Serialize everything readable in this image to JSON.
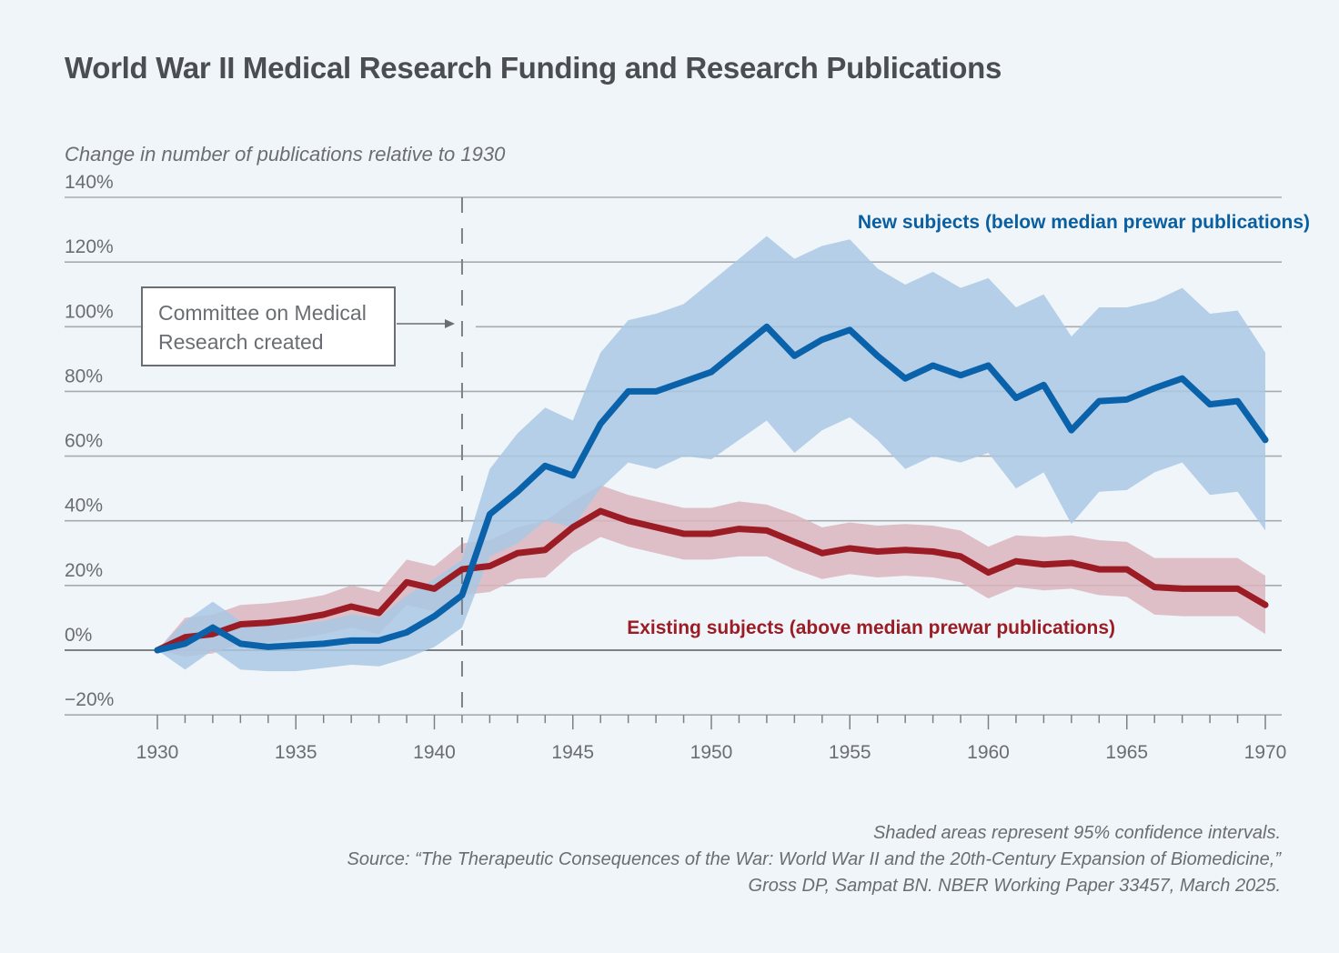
{
  "chart_data": {
    "type": "line",
    "title": "World War II Medical Research Funding and Research Publications",
    "ylabel": "Change in number of publications relative to 1930",
    "xlabel": "",
    "ylim": [
      -20,
      140
    ],
    "xlim": [
      1930,
      1970
    ],
    "grid": true,
    "y_ticks": [
      -20,
      0,
      20,
      40,
      60,
      80,
      100,
      120,
      140
    ],
    "y_tick_labels": [
      "−20%",
      "0%",
      "20%",
      "40%",
      "60%",
      "80%",
      "100%",
      "120%",
      "140%"
    ],
    "x_ticks": [
      1930,
      1935,
      1940,
      1945,
      1950,
      1955,
      1960,
      1965,
      1970
    ],
    "x_tick_labels": [
      "1930",
      "1935",
      "1940",
      "1945",
      "1950",
      "1955",
      "1960",
      "1965",
      "1970"
    ],
    "x": [
      1930,
      1931,
      1932,
      1933,
      1934,
      1935,
      1936,
      1937,
      1938,
      1939,
      1940,
      1941,
      1942,
      1943,
      1944,
      1945,
      1946,
      1947,
      1948,
      1949,
      1950,
      1951,
      1952,
      1953,
      1954,
      1955,
      1956,
      1957,
      1958,
      1959,
      1960,
      1961,
      1962,
      1963,
      1964,
      1965,
      1966,
      1967,
      1968,
      1969,
      1970
    ],
    "series": [
      {
        "name": "New subjects (below median prewar publications)",
        "color": "#0a62aa",
        "band_color": "#a9c8e3",
        "values": [
          0,
          2,
          7,
          2,
          1,
          1.5,
          2,
          3,
          3,
          5.5,
          10.5,
          17,
          42,
          49,
          57,
          54,
          70,
          80,
          80,
          83,
          86,
          93,
          100,
          91,
          96,
          99,
          91,
          84,
          88,
          85,
          88,
          78,
          82,
          68,
          77,
          77.5,
          81,
          84,
          76,
          77,
          65
        ],
        "ci_upper": [
          0,
          9,
          15,
          9,
          8,
          8,
          9,
          11,
          10,
          17,
          22,
          28,
          56,
          67,
          75,
          71,
          92,
          102,
          104,
          107,
          114,
          121,
          128,
          121,
          125,
          127,
          118,
          113,
          117,
          112,
          115,
          106,
          110,
          97,
          106,
          106,
          108,
          112,
          104,
          105,
          92
        ],
        "ci_lower": [
          0,
          -6,
          0,
          -6,
          -6.5,
          -6.5,
          -5.5,
          -4.5,
          -5,
          -2.5,
          1,
          7,
          29,
          33,
          40,
          38,
          50,
          58,
          56,
          60,
          59,
          65,
          71,
          61,
          68,
          72,
          65,
          56,
          60,
          58,
          61,
          50,
          55,
          39,
          49,
          49.5,
          55,
          58,
          48,
          49,
          37
        ]
      },
      {
        "name": "Existing subjects (above median prewar publications)",
        "color": "#9b1c24",
        "band_color": "#dcb5bd",
        "values": [
          0,
          4,
          5,
          8,
          8.5,
          9.5,
          11,
          13.5,
          11.5,
          21,
          19,
          25,
          26,
          30,
          31,
          38,
          43,
          40,
          38,
          36,
          36,
          37.5,
          37,
          33.5,
          30,
          31.5,
          30.5,
          31,
          30.5,
          29,
          24,
          27.5,
          26.5,
          27,
          25,
          25,
          19.5,
          19,
          19,
          19,
          14
        ],
        "ci_upper": [
          0,
          10,
          11,
          14,
          14.5,
          15.5,
          17,
          20,
          18,
          28,
          26,
          33,
          34,
          38,
          40,
          46,
          51,
          48,
          46,
          44,
          44,
          46,
          45,
          42,
          38,
          39.5,
          38.5,
          39,
          38.5,
          37,
          32,
          35.5,
          35,
          35.5,
          34,
          33.5,
          28.5,
          28.5,
          28.5,
          28.5,
          23
        ],
        "ci_lower": [
          0,
          -2,
          -1,
          2,
          2.5,
          3.5,
          5,
          7,
          5,
          14,
          12,
          17,
          18,
          22,
          22.5,
          30,
          35,
          32,
          30,
          28,
          28,
          29,
          29,
          25,
          22,
          23.5,
          22.5,
          23,
          22.5,
          21,
          16,
          19.5,
          18.5,
          19,
          17,
          16.5,
          11,
          10.5,
          10.5,
          10.5,
          5
        ]
      }
    ],
    "legend": {
      "new": "New subjects (below median prewar publications)",
      "existing": "Existing subjects (above median prewar publications)"
    },
    "annotation": {
      "line1": "Committee on Medical",
      "line2": "Research created",
      "x": 1941
    },
    "notes": {
      "ci": "Shaded areas represent 95% confidence intervals.",
      "source1": "Source: “The Therapeutic Consequences of the War: World War II and the 20th-Century Expansion of Biomedicine,”",
      "source2": "Gross DP, Sampat BN. NBER Working Paper 33457, March 2025."
    }
  }
}
